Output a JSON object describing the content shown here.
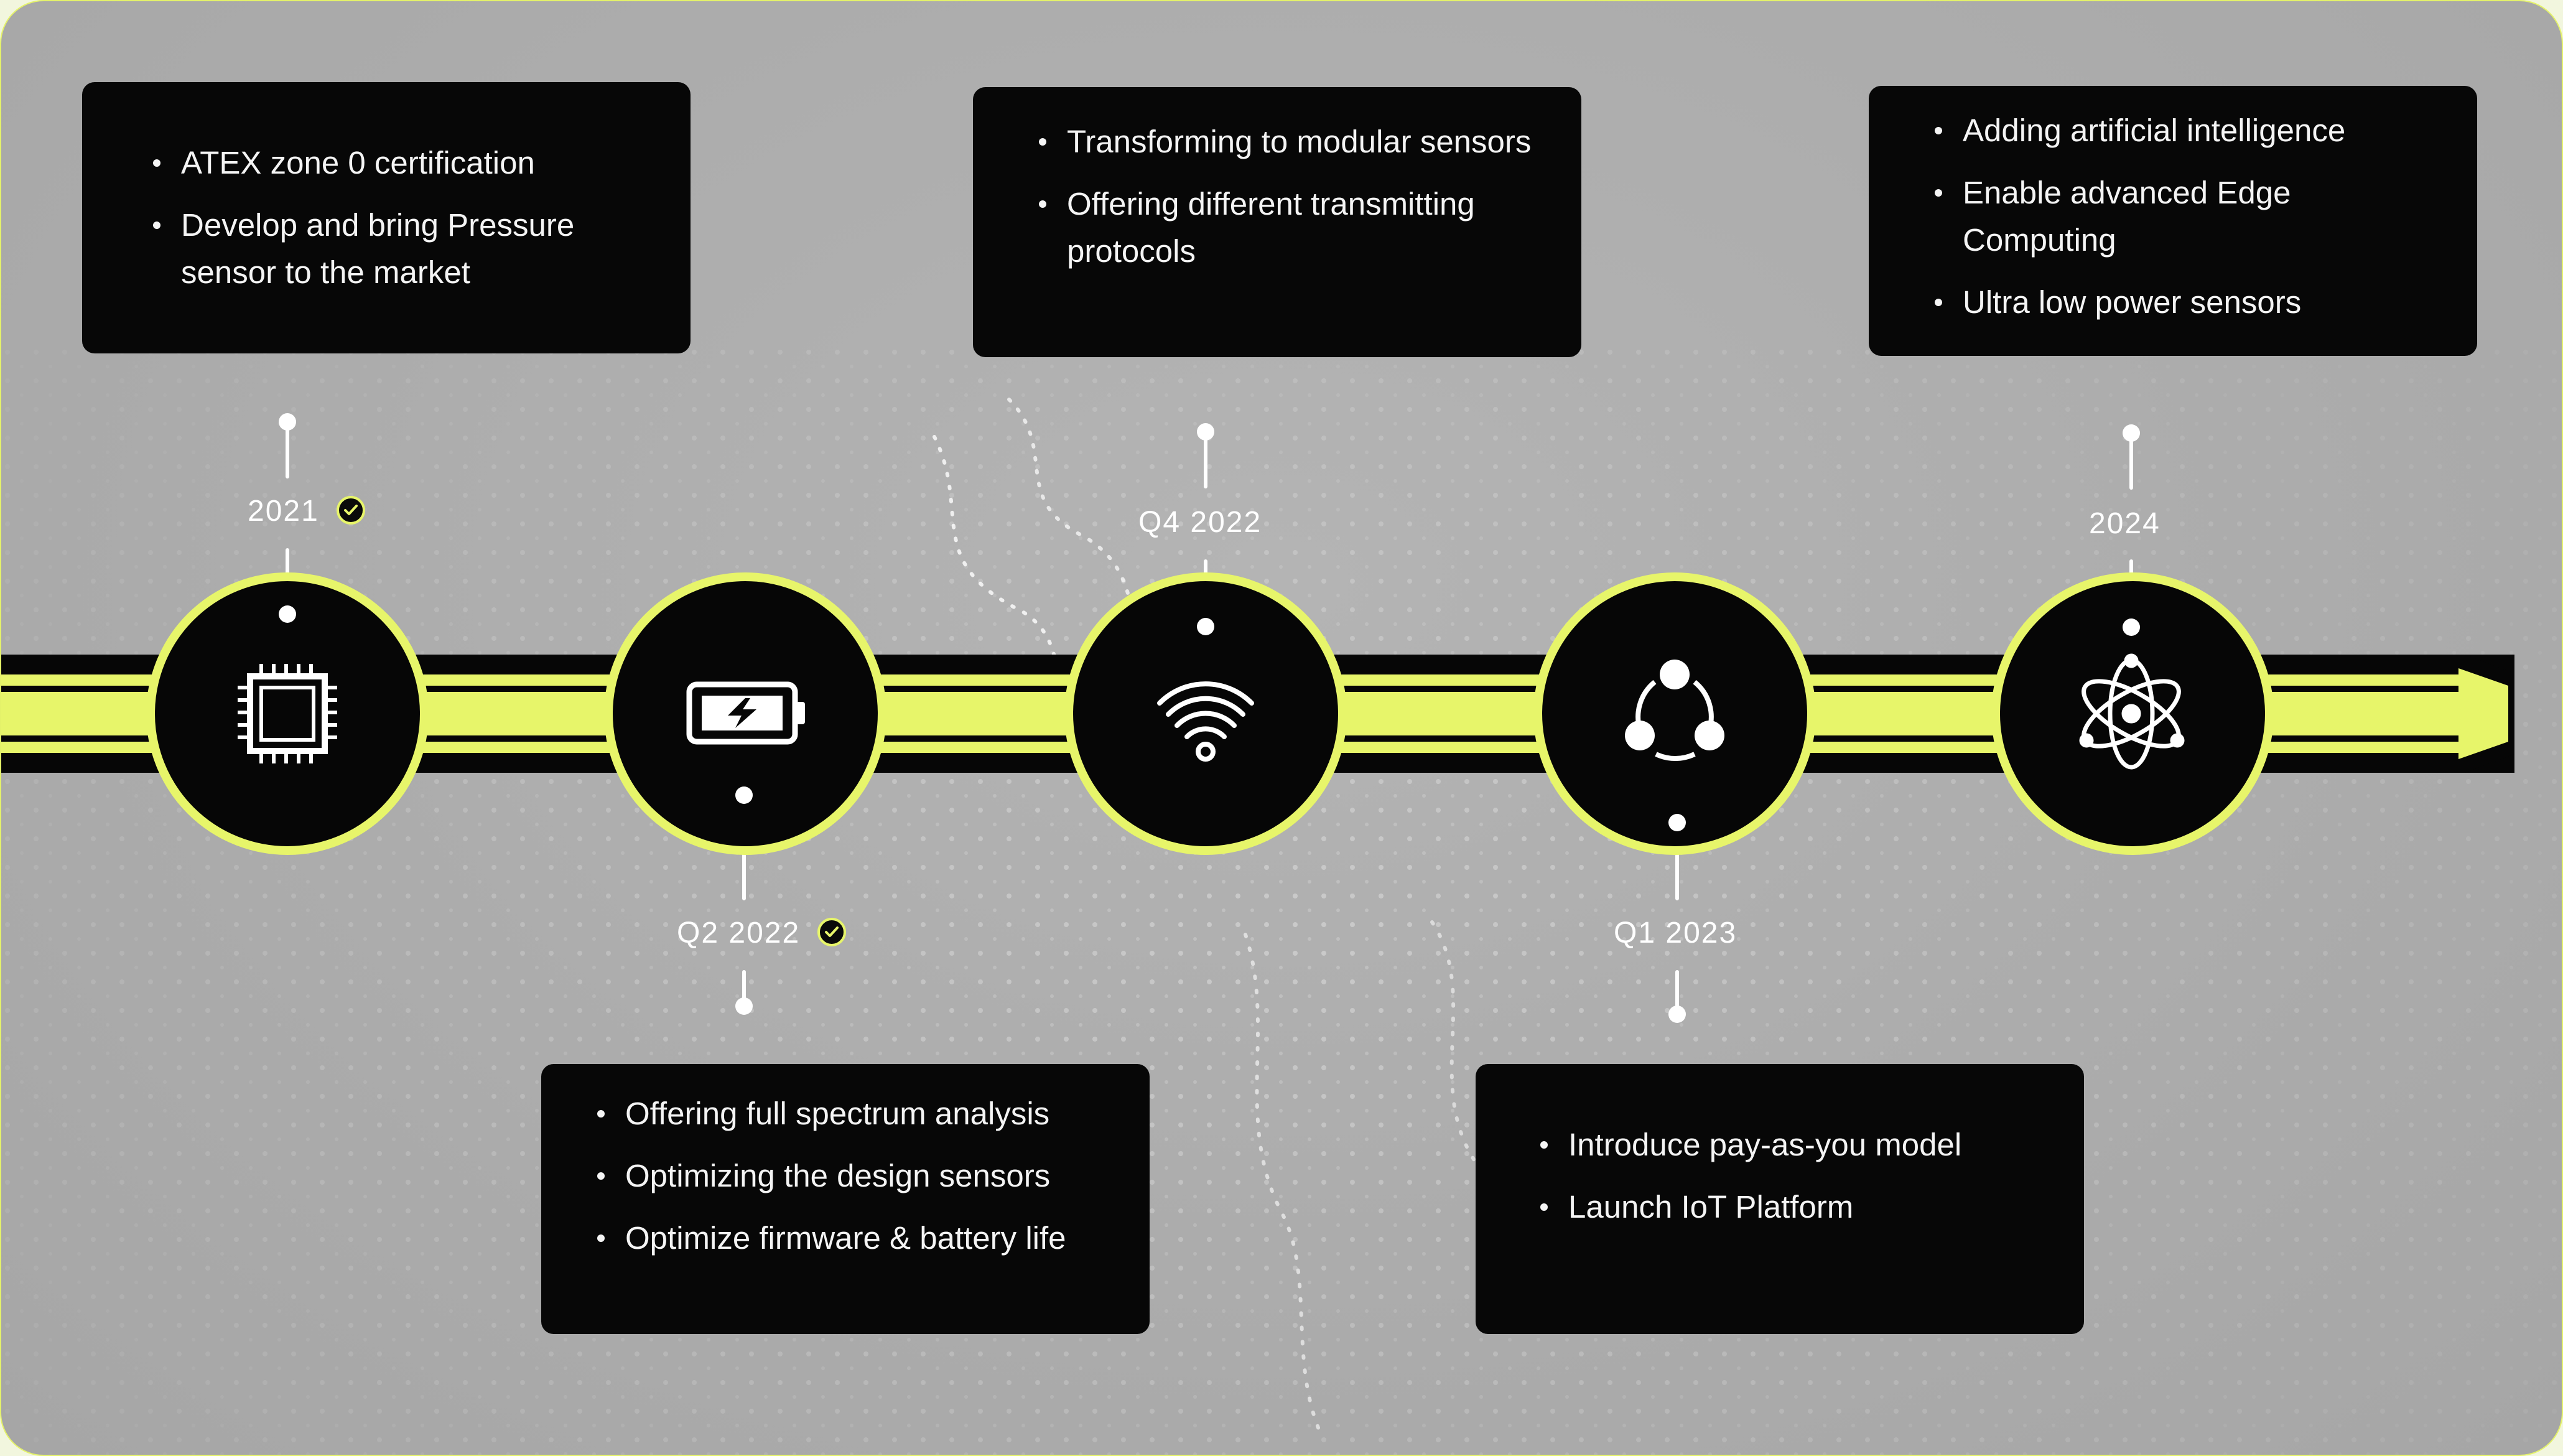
{
  "colors": {
    "accent": "#e7f56a",
    "card": "#070707",
    "background": "#acacac"
  },
  "milestones": [
    {
      "label": "2021",
      "done": true,
      "icon": "microchip-icon",
      "items": [
        "ATEX zone 0 certification",
        "Develop and bring Pressure sensor to the market"
      ]
    },
    {
      "label": "Q2 2022",
      "done": true,
      "icon": "battery-icon",
      "items": [
        "Offering full spectrum analysis",
        "Optimizing the design sensors",
        "Optimize firmware & battery life"
      ]
    },
    {
      "label": "Q4 2022",
      "done": false,
      "icon": "wifi-icon",
      "items": [
        "Transforming to modular sensors",
        "Offering different transmitting protocols"
      ]
    },
    {
      "label": "Q1 2023",
      "done": false,
      "icon": "network-icon",
      "items": [
        "Introduce pay-as-you model",
        "Launch IoT Platform"
      ]
    },
    {
      "label": "2024",
      "done": false,
      "icon": "atom-icon",
      "items": [
        "Adding artificial intelligence",
        "Enable advanced Edge Computing",
        "Ultra low power sensors"
      ]
    }
  ]
}
